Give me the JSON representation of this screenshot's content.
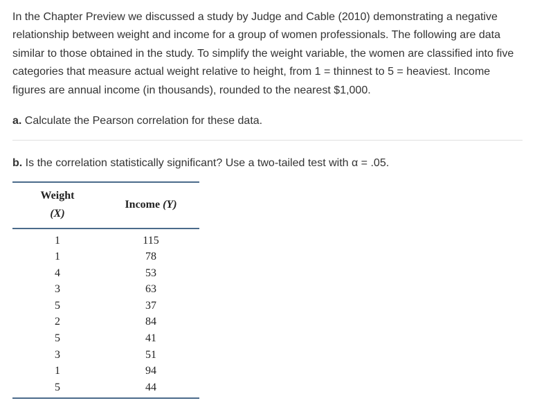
{
  "intro": "In the Chapter Preview we discussed a study by Judge and Cable (2010) demonstrating a negative relationship between weight and income for a group of women professionals. The following are data similar to those obtained in the study. To simplify the weight variable, the women are classified into five categories that measure actual weight relative to height, from 1 = thinnest to 5 = heaviest. Income figures are annual income (in thousands), rounded to the nearest $1,000.",
  "questions": {
    "a": {
      "label": "a.",
      "text": "Calculate the Pearson correlation for these data."
    },
    "b": {
      "label": "b.",
      "text": "Is the correlation statistically significant? Use a two-tailed test with α = .05."
    }
  },
  "table": {
    "headers": {
      "x": {
        "label": "Weight ",
        "var": "(X)"
      },
      "y": {
        "label": "Income ",
        "var": "(Y)"
      }
    },
    "rows": [
      {
        "x": "1",
        "y": "115"
      },
      {
        "x": "1",
        "y": "78"
      },
      {
        "x": "4",
        "y": "53"
      },
      {
        "x": "3",
        "y": "63"
      },
      {
        "x": "5",
        "y": "37"
      },
      {
        "x": "2",
        "y": "84"
      },
      {
        "x": "5",
        "y": "41"
      },
      {
        "x": "3",
        "y": "51"
      },
      {
        "x": "1",
        "y": "94"
      },
      {
        "x": "5",
        "y": "44"
      }
    ],
    "border_color": "#4a6a8a"
  }
}
